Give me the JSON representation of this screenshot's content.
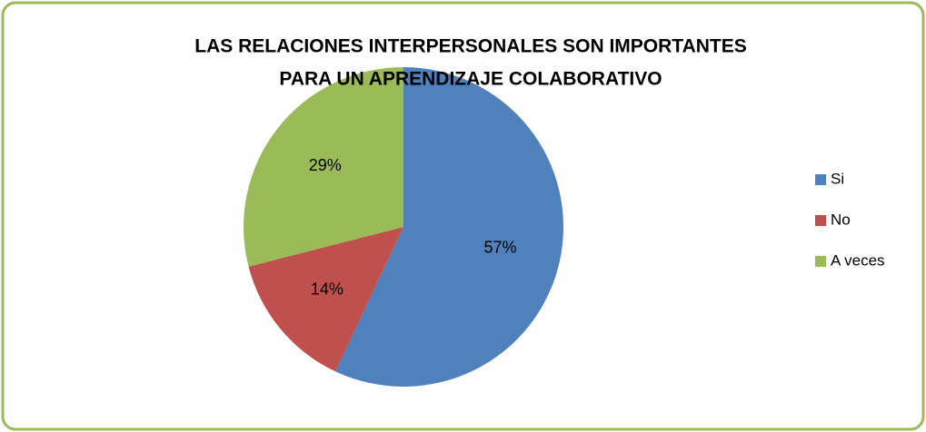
{
  "chart_data": {
    "type": "pie",
    "title": [
      "LAS RELACIONES INTERPERSONALES SON IMPORTANTES",
      "PARA UN APRENDIZAJE COLABORATIVO"
    ],
    "categories": [
      "Si",
      "No",
      "A veces"
    ],
    "values": [
      57,
      14,
      29
    ],
    "value_labels": [
      "57%",
      "14%",
      "29%"
    ],
    "colors": [
      "#4f81bd",
      "#c0504d",
      "#9bbb59"
    ],
    "legend": "right"
  }
}
